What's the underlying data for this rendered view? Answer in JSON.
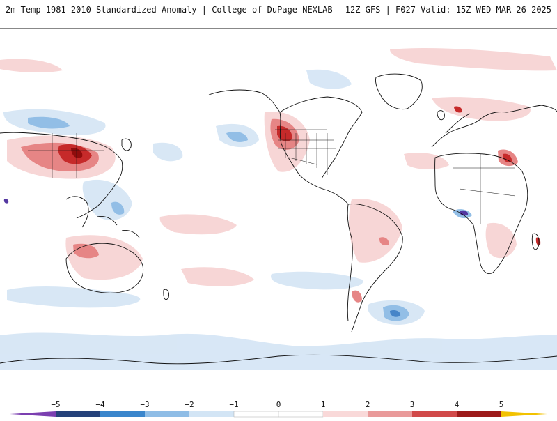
{
  "header": {
    "title_left": "2m Temp 1981-2010 Standardized Anomaly | College of DuPage NEXLAB",
    "title_right": "12Z GFS | F027 Valid: 15Z WED MAR 26 2025"
  },
  "colorbar": {
    "tick_labels": [
      "−5",
      "−4",
      "−3",
      "−2",
      "−1",
      "0",
      "1",
      "2",
      "3",
      "4",
      "5"
    ],
    "colors": [
      "#7b3fb0",
      "#25427a",
      "#3a86cc",
      "#8fbde6",
      "#d3e5f5",
      "#ffffff",
      "#f9d9d9",
      "#e99a9a",
      "#d14a4a",
      "#9c1a1a",
      "#f2c200"
    ]
  },
  "map": {
    "colors": {
      "warm_light": "#f7d4d4",
      "warm_mid": "#e57f7f",
      "warm_strong": "#c41f1f",
      "hot": "#8b0000",
      "cool_light": "#d6e6f5",
      "cool_mid": "#8dbbe5",
      "cool_strong": "#3d7fc6",
      "extreme_cold": "#4b2d9c",
      "coastline": "#111111"
    }
  }
}
